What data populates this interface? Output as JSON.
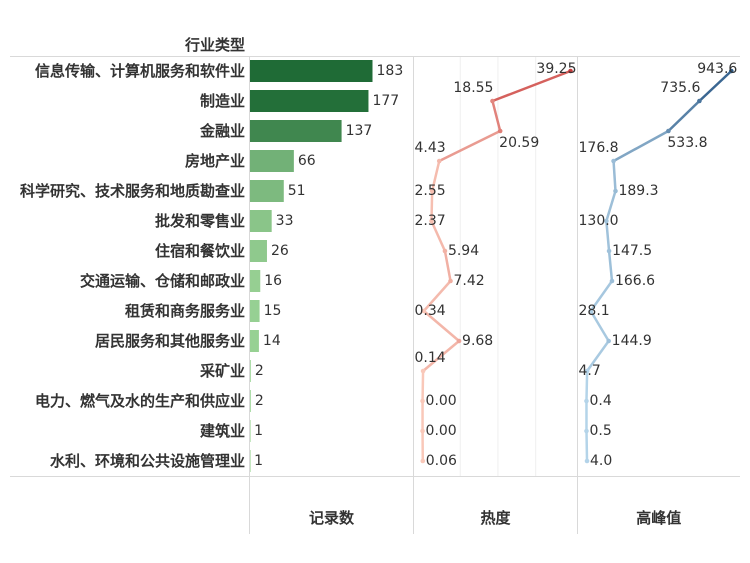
{
  "colors": {
    "background": "#ffffff",
    "text": "#333333",
    "rule": "#d9d9d9",
    "gridline": "#efefef",
    "bar_low": "#a1d99b",
    "bar_high": "#1f6b36",
    "heat_low": "#f9c8b9",
    "heat_high": "#c83c3c",
    "peak_low": "#b4d4e9",
    "peak_high": "#2c5a87"
  },
  "chart_data": {
    "type": "bar",
    "orientation": "horizontal",
    "ylabel": "行业类型",
    "grid": true,
    "categories": [
      "信息传输、计算机服务和软件业",
      "制造业",
      "金融业",
      "房地产业",
      "科学研究、技术服务和地质勘查业",
      "批发和零售业",
      "住宿和餐饮业",
      "交通运输、仓储和邮政业",
      "租赁和商务服务业",
      "居民服务和其他服务业",
      "采矿业",
      "电力、燃气及水的生产和供应业",
      "建筑业",
      "水利、环境和公共设施管理业"
    ],
    "series": [
      {
        "name": "记录数",
        "type": "bar",
        "values": [
          183,
          177,
          137,
          66,
          51,
          33,
          26,
          16,
          15,
          14,
          2,
          2,
          1,
          1
        ],
        "xlim": [
          0,
          244
        ]
      },
      {
        "name": "热度",
        "type": "line",
        "values": [
          39.25,
          18.55,
          20.59,
          4.43,
          2.55,
          2.37,
          5.94,
          7.42,
          0.34,
          9.68,
          0.14,
          0.0,
          0.0,
          0.06
        ],
        "labels": [
          "39.25",
          "18.55",
          "20.59",
          "4.43",
          "2.55",
          "2.37",
          "5.94",
          "7.42",
          "0.34",
          "9.68",
          "0.14",
          "0.00",
          "0.00",
          "0.06"
        ],
        "xlim": [
          -2.4,
          41.1
        ],
        "gridlines": [
          10,
          20,
          30
        ]
      },
      {
        "name": "高峰值",
        "type": "line",
        "values": [
          943.6,
          735.6,
          533.8,
          176.8,
          189.3,
          130.0,
          147.5,
          166.6,
          28.1,
          144.9,
          4.7,
          0.4,
          0.5,
          4.0
        ],
        "labels": [
          "943.6",
          "735.6",
          "533.8",
          "176.8",
          "189.3",
          "130.0",
          "147.5",
          "166.6",
          "28.1",
          "144.9",
          "4.7",
          "0.4",
          "0.5",
          "4.0"
        ],
        "xlim": [
          -58,
          1000
        ]
      }
    ]
  }
}
